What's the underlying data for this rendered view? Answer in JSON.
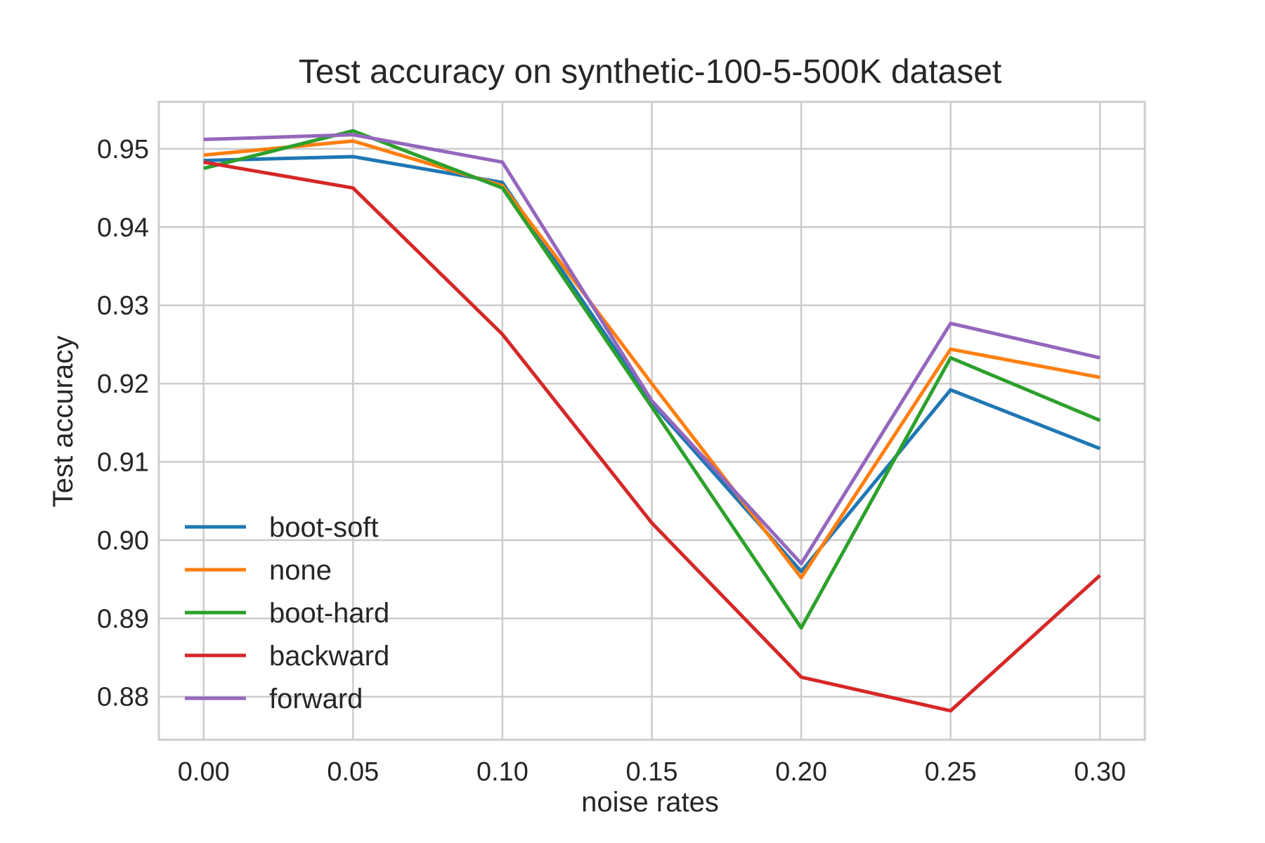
{
  "chart_data": {
    "type": "line",
    "title": "Test accuracy on synthetic-100-5-500K dataset",
    "xlabel": "noise rates",
    "ylabel": "Test accuracy",
    "x": [
      0.0,
      0.05,
      0.1,
      0.15,
      0.2,
      0.25,
      0.3
    ],
    "x_tick_labels": [
      "0.00",
      "0.05",
      "0.10",
      "0.15",
      "0.20",
      "0.25",
      "0.30"
    ],
    "y_tick_values": [
      0.88,
      0.89,
      0.9,
      0.91,
      0.92,
      0.93,
      0.94,
      0.95
    ],
    "y_tick_labels": [
      "0.88",
      "0.89",
      "0.90",
      "0.91",
      "0.92",
      "0.93",
      "0.94",
      "0.95"
    ],
    "xlim": [
      -0.015,
      0.315
    ],
    "ylim": [
      0.8745,
      0.956
    ],
    "grid": true,
    "legend_position": "lower-left",
    "series": [
      {
        "name": "boot-soft",
        "color": "#1f77b4",
        "values": [
          0.9485,
          0.949,
          0.9457,
          0.9175,
          0.896,
          0.9192,
          0.9117
        ]
      },
      {
        "name": "none",
        "color": "#ff7f0e",
        "values": [
          0.9492,
          0.951,
          0.9453,
          0.92,
          0.8952,
          0.9244,
          0.9208
        ]
      },
      {
        "name": "boot-hard",
        "color": "#2ca02c",
        "values": [
          0.9475,
          0.9523,
          0.945,
          0.917,
          0.8888,
          0.9233,
          0.9153
        ]
      },
      {
        "name": "backward",
        "color": "#d62728",
        "values": [
          0.9483,
          0.945,
          0.9263,
          0.9022,
          0.8825,
          0.8782,
          0.8955
        ]
      },
      {
        "name": "forward",
        "color": "#9467bd",
        "values": [
          0.9512,
          0.9518,
          0.9483,
          0.9178,
          0.897,
          0.9277,
          0.9233
        ]
      }
    ]
  }
}
